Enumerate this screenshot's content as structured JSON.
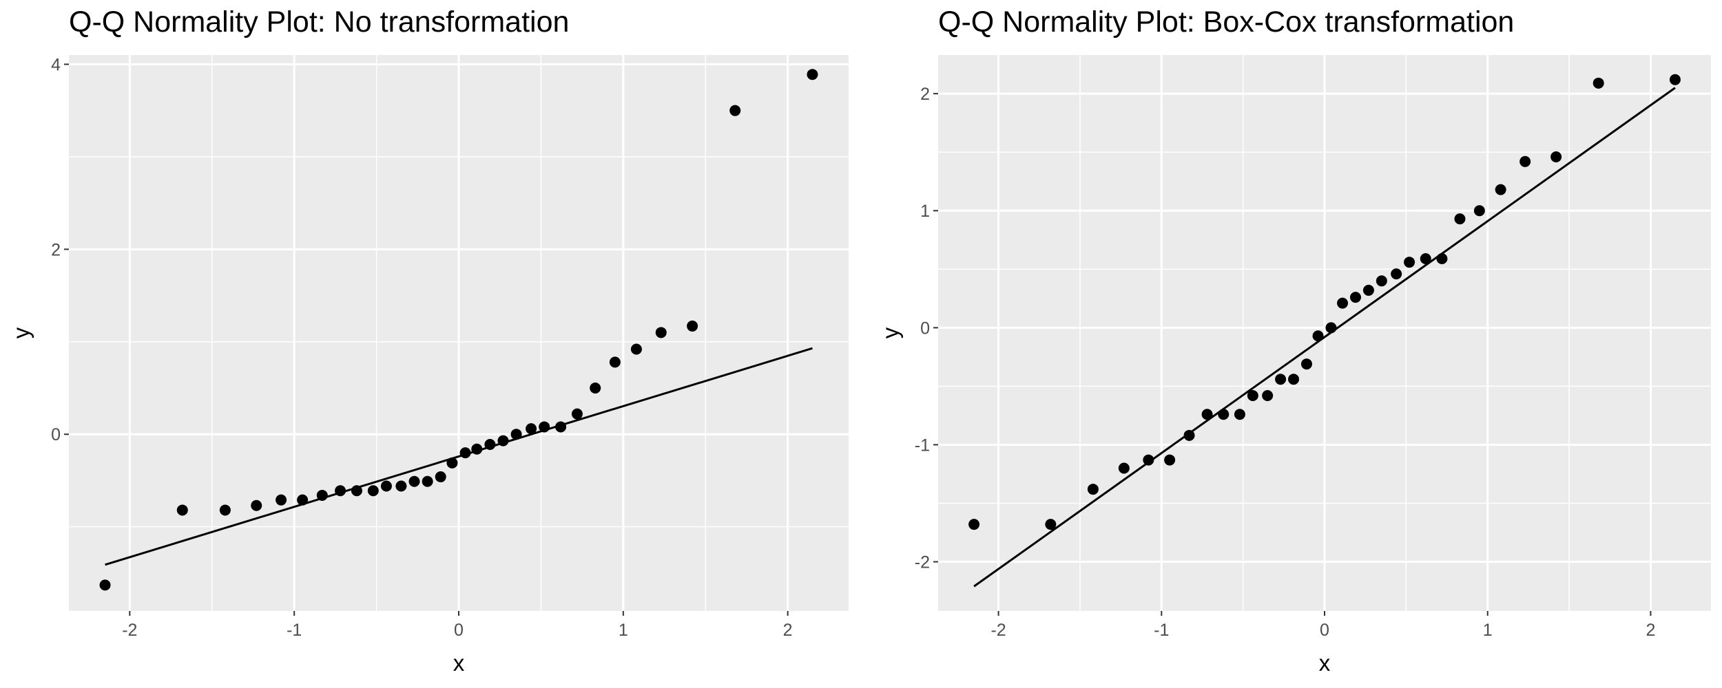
{
  "colors": {
    "panel_background": "#ebebeb",
    "grid": "#ffffff",
    "points": "#000000",
    "line": "#000000",
    "tick_label": "#4d4d4d"
  },
  "chart_data": [
    {
      "type": "scatter",
      "title": "Q-Q Normality Plot: No transformation",
      "xlabel": "x",
      "ylabel": "y",
      "xlim": [
        -2.37,
        2.37
      ],
      "ylim": [
        -1.91,
        4.1
      ],
      "x_ticks": [
        -2,
        -1,
        0,
        1,
        2
      ],
      "x_tick_labels": [
        "-2",
        "-1",
        "0",
        "1",
        "2"
      ],
      "y_ticks": [
        0,
        2,
        4
      ],
      "y_tick_labels": [
        "0",
        "2",
        "4"
      ],
      "grid": true,
      "legend": "none",
      "points": [
        {
          "x": -2.15,
          "y": -1.63
        },
        {
          "x": -1.68,
          "y": -0.82
        },
        {
          "x": -1.42,
          "y": -0.82
        },
        {
          "x": -1.23,
          "y": -0.77
        },
        {
          "x": -1.08,
          "y": -0.71
        },
        {
          "x": -0.95,
          "y": -0.71
        },
        {
          "x": -0.83,
          "y": -0.66
        },
        {
          "x": -0.72,
          "y": -0.61
        },
        {
          "x": -0.62,
          "y": -0.61
        },
        {
          "x": -0.52,
          "y": -0.61
        },
        {
          "x": -0.44,
          "y": -0.56
        },
        {
          "x": -0.35,
          "y": -0.56
        },
        {
          "x": -0.27,
          "y": -0.51
        },
        {
          "x": -0.19,
          "y": -0.51
        },
        {
          "x": -0.11,
          "y": -0.46
        },
        {
          "x": -0.04,
          "y": -0.31
        },
        {
          "x": 0.04,
          "y": -0.2
        },
        {
          "x": 0.11,
          "y": -0.16
        },
        {
          "x": 0.19,
          "y": -0.11
        },
        {
          "x": 0.27,
          "y": -0.07
        },
        {
          "x": 0.35,
          "y": 0.0
        },
        {
          "x": 0.44,
          "y": 0.06
        },
        {
          "x": 0.52,
          "y": 0.08
        },
        {
          "x": 0.62,
          "y": 0.08
        },
        {
          "x": 0.72,
          "y": 0.22
        },
        {
          "x": 0.83,
          "y": 0.5
        },
        {
          "x": 0.95,
          "y": 0.78
        },
        {
          "x": 1.08,
          "y": 0.92
        },
        {
          "x": 1.23,
          "y": 1.1
        },
        {
          "x": 1.42,
          "y": 1.17
        },
        {
          "x": 1.68,
          "y": 3.5
        },
        {
          "x": 2.15,
          "y": 3.89
        }
      ],
      "line": {
        "x": [
          -2.15,
          2.15
        ],
        "y": [
          -1.41,
          0.93
        ]
      }
    },
    {
      "type": "scatter",
      "title": "Q-Q Normality Plot: Box-Cox transformation",
      "xlabel": "x",
      "ylabel": "y",
      "xlim": [
        -2.37,
        2.37
      ],
      "ylim": [
        -2.42,
        2.33
      ],
      "x_ticks": [
        -2,
        -1,
        0,
        1,
        2
      ],
      "x_tick_labels": [
        "-2",
        "-1",
        "0",
        "1",
        "2"
      ],
      "y_ticks": [
        -2,
        -1,
        0,
        1,
        2
      ],
      "y_tick_labels": [
        "-2",
        "-1",
        "0",
        "1",
        "2"
      ],
      "grid": true,
      "legend": "none",
      "points": [
        {
          "x": -2.15,
          "y": -1.68
        },
        {
          "x": -1.68,
          "y": -1.68
        },
        {
          "x": -1.42,
          "y": -1.38
        },
        {
          "x": -1.23,
          "y": -1.2
        },
        {
          "x": -1.08,
          "y": -1.13
        },
        {
          "x": -0.95,
          "y": -1.13
        },
        {
          "x": -0.83,
          "y": -0.92
        },
        {
          "x": -0.72,
          "y": -0.74
        },
        {
          "x": -0.62,
          "y": -0.74
        },
        {
          "x": -0.52,
          "y": -0.74
        },
        {
          "x": -0.44,
          "y": -0.58
        },
        {
          "x": -0.35,
          "y": -0.58
        },
        {
          "x": -0.27,
          "y": -0.44
        },
        {
          "x": -0.19,
          "y": -0.44
        },
        {
          "x": -0.11,
          "y": -0.31
        },
        {
          "x": -0.04,
          "y": -0.07
        },
        {
          "x": 0.04,
          "y": 0.0
        },
        {
          "x": 0.11,
          "y": 0.21
        },
        {
          "x": 0.19,
          "y": 0.26
        },
        {
          "x": 0.27,
          "y": 0.32
        },
        {
          "x": 0.35,
          "y": 0.4
        },
        {
          "x": 0.44,
          "y": 0.46
        },
        {
          "x": 0.52,
          "y": 0.56
        },
        {
          "x": 0.62,
          "y": 0.59
        },
        {
          "x": 0.72,
          "y": 0.59
        },
        {
          "x": 0.83,
          "y": 0.93
        },
        {
          "x": 0.95,
          "y": 1.0
        },
        {
          "x": 1.08,
          "y": 1.18
        },
        {
          "x": 1.23,
          "y": 1.42
        },
        {
          "x": 1.42,
          "y": 1.46
        },
        {
          "x": 1.68,
          "y": 2.09
        },
        {
          "x": 2.15,
          "y": 2.12
        }
      ],
      "line": {
        "x": [
          -2.15,
          2.15
        ],
        "y": [
          -2.21,
          2.05
        ]
      }
    }
  ]
}
